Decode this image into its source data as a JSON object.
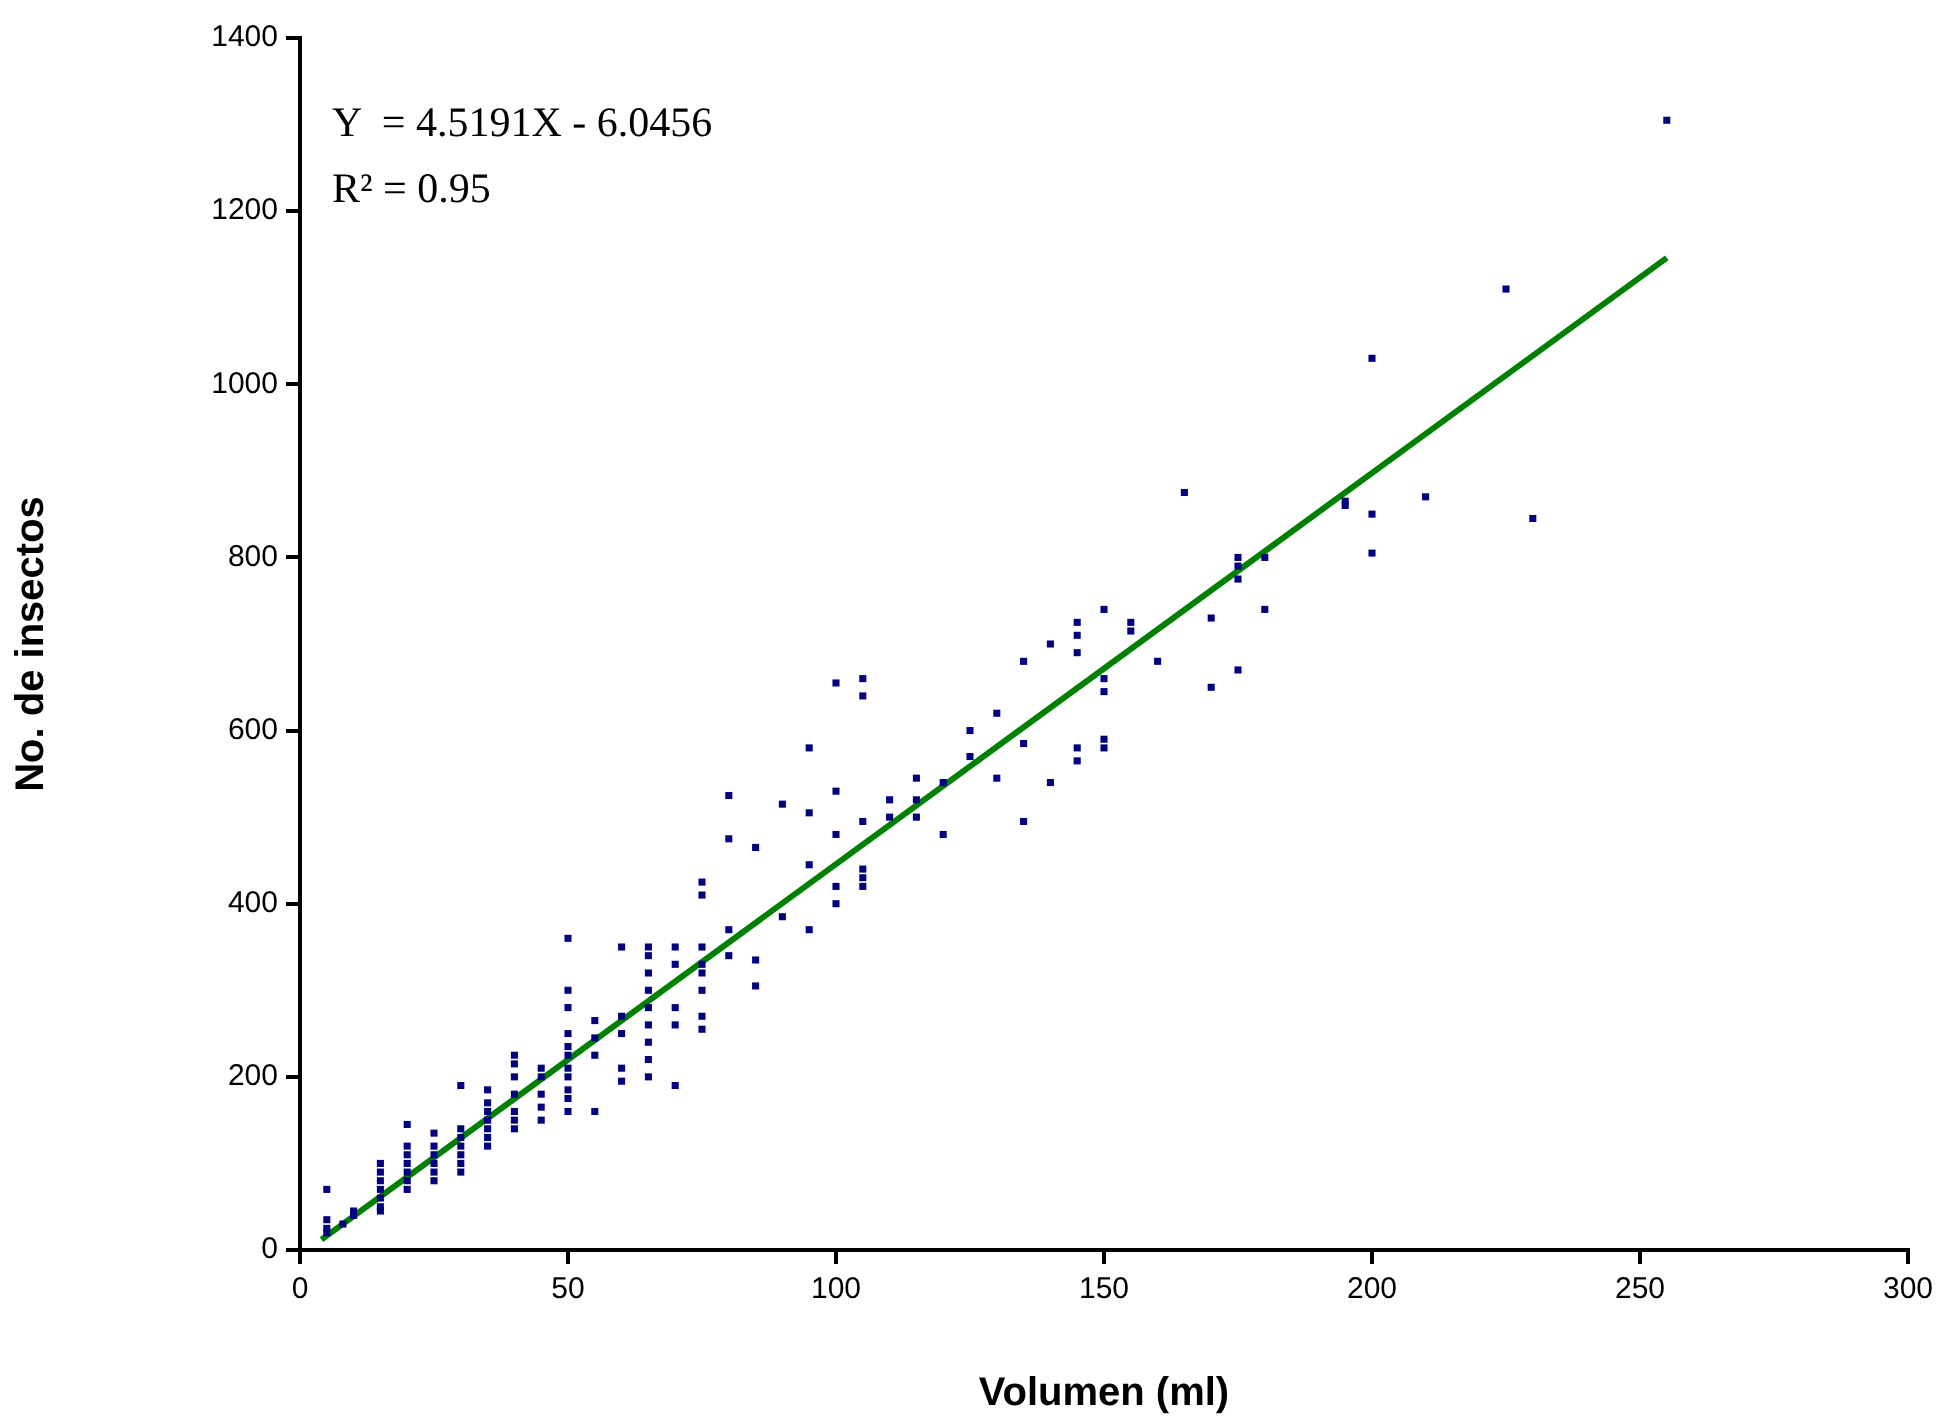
{
  "chart_data": {
    "type": "scatter",
    "xlabel": "Volumen (ml)",
    "ylabel": "No. de insectos",
    "annotations": [
      "Y  = 4.5191X - 6.0456",
      "R² = 0.95"
    ],
    "xlim": [
      0,
      300
    ],
    "xticks": [
      0,
      50,
      100,
      150,
      200,
      250,
      300
    ],
    "ylim": [
      0,
      1400
    ],
    "yticks": [
      0,
      200,
      400,
      600,
      800,
      1000,
      1200,
      1400
    ],
    "marker": "square",
    "series": [
      {
        "type": "scatter",
        "color": "#000080",
        "x": [
          5,
          5,
          5,
          5,
          8,
          10,
          10,
          15,
          15,
          15,
          15,
          15,
          15,
          15,
          20,
          20,
          20,
          20,
          20,
          20,
          20,
          25,
          25,
          25,
          25,
          25,
          25,
          30,
          30,
          30,
          30,
          30,
          30,
          30,
          35,
          35,
          35,
          35,
          35,
          35,
          35,
          40,
          40,
          40,
          40,
          40,
          40,
          40,
          45,
          45,
          45,
          45,
          45,
          50,
          50,
          50,
          50,
          50,
          50,
          50,
          50,
          50,
          50,
          50,
          55,
          55,
          55,
          55,
          60,
          60,
          60,
          60,
          60,
          65,
          65,
          65,
          65,
          65,
          65,
          65,
          65,
          65,
          70,
          70,
          70,
          70,
          70,
          75,
          75,
          75,
          75,
          75,
          75,
          75,
          75,
          80,
          80,
          80,
          80,
          85,
          85,
          85,
          90,
          90,
          95,
          95,
          95,
          95,
          100,
          100,
          100,
          100,
          100,
          105,
          105,
          105,
          105,
          105,
          105,
          110,
          110,
          115,
          115,
          115,
          120,
          120,
          125,
          125,
          130,
          130,
          135,
          135,
          135,
          140,
          140,
          145,
          145,
          145,
          145,
          145,
          150,
          150,
          150,
          150,
          150,
          155,
          155,
          160,
          165,
          170,
          170,
          175,
          175,
          175,
          175,
          180,
          180,
          195,
          195,
          200,
          200,
          200,
          210,
          225,
          230,
          255
        ],
        "values": [
          70,
          35,
          25,
          20,
          30,
          45,
          40,
          100,
          90,
          80,
          70,
          60,
          50,
          45,
          145,
          120,
          110,
          100,
          90,
          80,
          70,
          135,
          120,
          110,
          100,
          90,
          80,
          190,
          140,
          130,
          120,
          110,
          100,
          90,
          185,
          170,
          160,
          150,
          140,
          130,
          120,
          225,
          215,
          200,
          180,
          160,
          150,
          140,
          210,
          200,
          180,
          165,
          150,
          360,
          300,
          280,
          250,
          235,
          225,
          210,
          200,
          185,
          175,
          160,
          265,
          245,
          225,
          160,
          350,
          270,
          250,
          210,
          195,
          350,
          340,
          320,
          300,
          280,
          260,
          240,
          220,
          200,
          350,
          330,
          280,
          260,
          190,
          425,
          410,
          350,
          330,
          320,
          300,
          270,
          255,
          525,
          475,
          370,
          340,
          465,
          335,
          305,
          515,
          385,
          580,
          505,
          445,
          370,
          655,
          530,
          480,
          420,
          400,
          660,
          640,
          495,
          440,
          430,
          420,
          520,
          500,
          545,
          520,
          500,
          540,
          480,
          600,
          570,
          620,
          545,
          680,
          585,
          495,
          700,
          540,
          725,
          710,
          690,
          580,
          565,
          740,
          660,
          645,
          590,
          580,
          725,
          715,
          680,
          875,
          730,
          650,
          800,
          790,
          775,
          670,
          800,
          740,
          865,
          860,
          1030,
          850,
          805,
          870,
          1110,
          845,
          1305
        ]
      },
      {
        "type": "line",
        "color": "#008000",
        "line_style": "solid",
        "marker": "none",
        "x": [
          4,
          255
        ],
        "values": [
          12,
          1146
        ]
      }
    ]
  }
}
